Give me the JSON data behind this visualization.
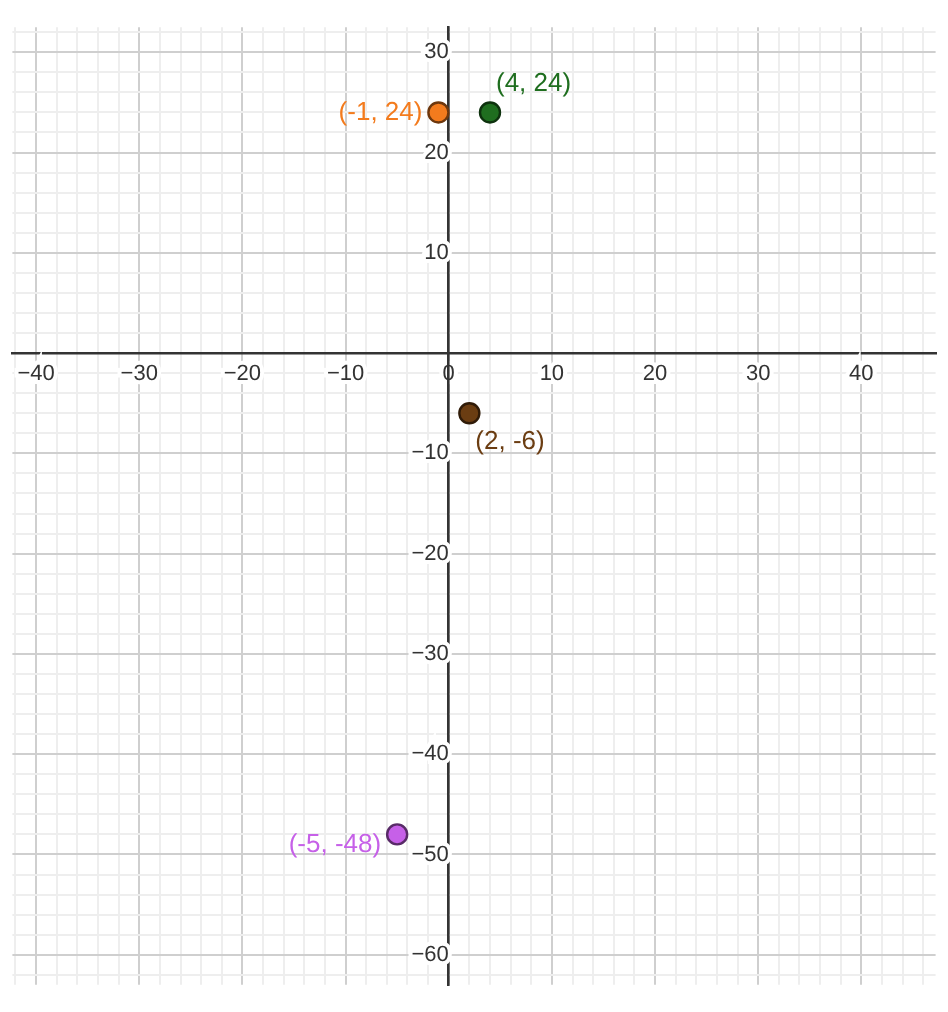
{
  "chart_data": {
    "type": "scatter",
    "marker": "circle",
    "grid": true,
    "legend": false,
    "xlim": [
      -42.3,
      47.2
    ],
    "ylim": [
      -63,
      32.5
    ],
    "xticks": [
      {
        "value": -42,
        "label": null
      },
      {
        "value": -40,
        "label": "−40"
      },
      {
        "value": -38,
        "label": null
      },
      {
        "value": -36,
        "label": null
      },
      {
        "value": -34,
        "label": null
      },
      {
        "value": -32,
        "label": null
      },
      {
        "value": -30,
        "label": "−30"
      },
      {
        "value": -28,
        "label": null
      },
      {
        "value": -26,
        "label": null
      },
      {
        "value": -24,
        "label": null
      },
      {
        "value": -22,
        "label": null
      },
      {
        "value": -20,
        "label": "−20"
      },
      {
        "value": -18,
        "label": null
      },
      {
        "value": -16,
        "label": null
      },
      {
        "value": -14,
        "label": null
      },
      {
        "value": -12,
        "label": null
      },
      {
        "value": -10,
        "label": "−10"
      },
      {
        "value": -8,
        "label": null
      },
      {
        "value": -6,
        "label": null
      },
      {
        "value": -4,
        "label": null
      },
      {
        "value": -2,
        "label": null
      },
      0,
      {
        "value": 2,
        "label": null
      },
      {
        "value": 4,
        "label": null
      },
      {
        "value": 6,
        "label": null
      },
      {
        "value": 8,
        "label": null
      },
      10,
      {
        "value": 12,
        "label": null
      },
      {
        "value": 14,
        "label": null
      },
      {
        "value": 16,
        "label": null
      },
      {
        "value": 18,
        "label": null
      },
      20,
      {
        "value": 22,
        "label": null
      },
      {
        "value": 24,
        "label": null
      },
      {
        "value": 26,
        "label": null
      },
      {
        "value": 28,
        "label": null
      },
      30,
      {
        "value": 32,
        "label": null
      },
      {
        "value": 34,
        "label": null
      },
      {
        "value": 36,
        "label": null
      },
      {
        "value": 38,
        "label": null
      },
      40,
      {
        "value": 42,
        "label": null
      },
      {
        "value": 44,
        "label": null
      },
      {
        "value": 46,
        "label": null
      }
    ],
    "yticks": [
      {
        "value": -62,
        "label": null
      },
      {
        "value": -60,
        "label": "−60"
      },
      {
        "value": -58,
        "label": null
      },
      {
        "value": -56,
        "label": null
      },
      {
        "value": -54,
        "label": null
      },
      {
        "value": -52,
        "label": null
      },
      {
        "value": -50,
        "label": "−50"
      },
      {
        "value": -48,
        "label": null
      },
      {
        "value": -46,
        "label": null
      },
      {
        "value": -44,
        "label": null
      },
      {
        "value": -42,
        "label": null
      },
      {
        "value": -40,
        "label": "−40"
      },
      {
        "value": -38,
        "label": null
      },
      {
        "value": -36,
        "label": null
      },
      {
        "value": -34,
        "label": null
      },
      {
        "value": -32,
        "label": null
      },
      {
        "value": -30,
        "label": "−30"
      },
      {
        "value": -28,
        "label": null
      },
      {
        "value": -26,
        "label": null
      },
      {
        "value": -24,
        "label": null
      },
      {
        "value": -22,
        "label": null
      },
      {
        "value": -20,
        "label": "−20"
      },
      {
        "value": -18,
        "label": null
      },
      {
        "value": -16,
        "label": null
      },
      {
        "value": -14,
        "label": null
      },
      {
        "value": -12,
        "label": null
      },
      {
        "value": -10,
        "label": "−10"
      },
      {
        "value": -8,
        "label": null
      },
      {
        "value": -6,
        "label": null
      },
      {
        "value": -4,
        "label": null
      },
      {
        "value": -2,
        "label": null
      },
      {
        "value": 0,
        "label": null
      },
      {
        "value": 2,
        "label": null
      },
      {
        "value": 4,
        "label": null
      },
      {
        "value": 6,
        "label": null
      },
      {
        "value": 8,
        "label": null
      },
      10,
      {
        "value": 12,
        "label": null
      },
      {
        "value": 14,
        "label": null
      },
      {
        "value": 16,
        "label": null
      },
      {
        "value": 18,
        "label": null
      },
      20,
      {
        "value": 22,
        "label": null
      },
      {
        "value": 24,
        "label": null
      },
      {
        "value": 26,
        "label": null
      },
      {
        "value": 28,
        "label": null
      },
      30,
      {
        "value": 32,
        "label": null
      }
    ],
    "series": [
      {
        "name": "(-1, 24)",
        "color": "#f37b1d",
        "x": [
          -1
        ],
        "values": [
          24
        ]
      },
      {
        "name": "(4, 24)",
        "color": "#1f6e1f",
        "x": [
          4
        ],
        "values": [
          24
        ]
      },
      {
        "name": "(2, -6)",
        "color": "#6b3d12",
        "x": [
          2
        ],
        "values": [
          -6
        ]
      },
      {
        "name": "(-5, -48)",
        "color": "#c660e8",
        "x": [
          -5
        ],
        "values": [
          -48
        ]
      }
    ]
  }
}
